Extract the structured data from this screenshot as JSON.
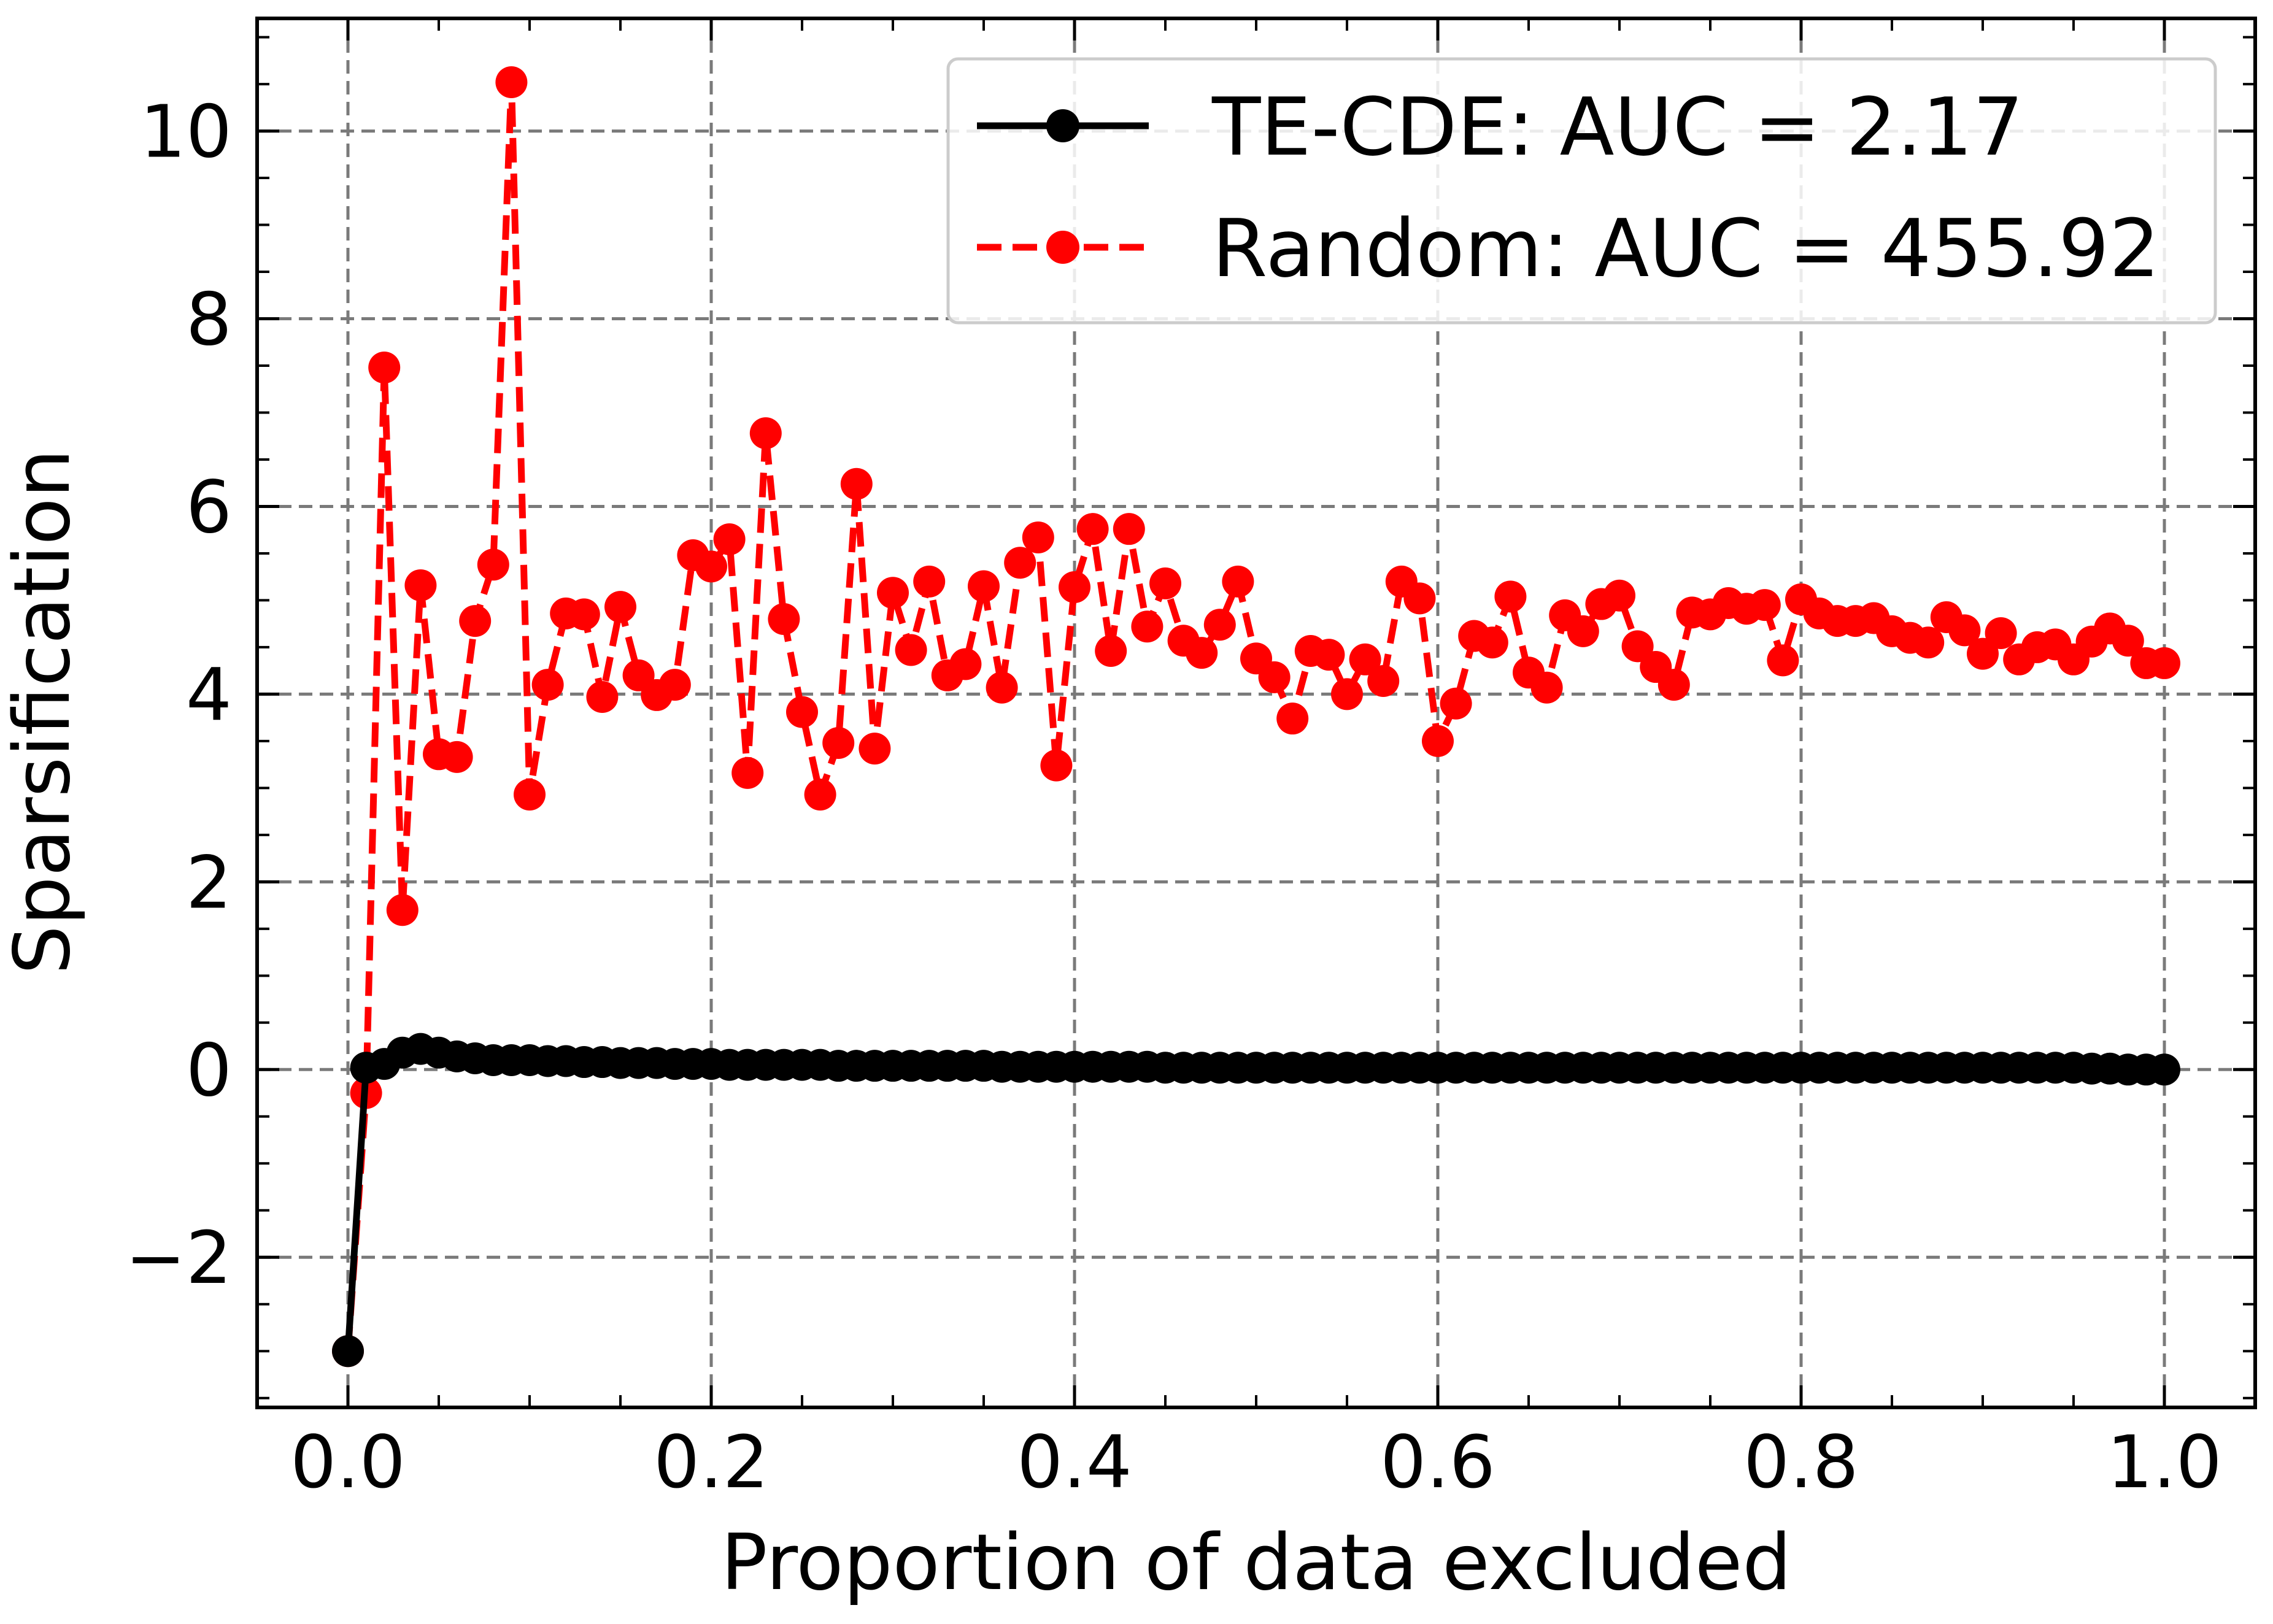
{
  "chart_data": {
    "type": "line",
    "xlabel": "Proportion of data excluded",
    "ylabel": "Sparsification",
    "xlim": [
      -0.05,
      1.05
    ],
    "ylim": [
      -3.6,
      11.2
    ],
    "x_ticks": [
      0.0,
      0.2,
      0.4,
      0.6,
      0.8,
      1.0
    ],
    "x_tick_labels": [
      "0.0",
      "0.2",
      "0.4",
      "0.6",
      "0.8",
      "1.0"
    ],
    "y_ticks": [
      -2,
      0,
      2,
      4,
      6,
      8,
      10
    ],
    "y_tick_labels": [
      "−2",
      "0",
      "2",
      "4",
      "6",
      "8",
      "10"
    ],
    "grid": true,
    "legend_position": "top-right",
    "series": [
      {
        "name": "TE-CDE: AUC = 2.17",
        "color": "#000000",
        "line_style": "solid",
        "marker": "circle",
        "x": [
          0.0,
          0.01,
          0.02,
          0.03,
          0.04,
          0.05,
          0.06,
          0.07,
          0.08,
          0.09,
          0.1,
          0.11,
          0.12,
          0.13,
          0.14,
          0.15,
          0.16,
          0.17,
          0.18,
          0.19,
          0.2,
          0.21,
          0.22,
          0.23,
          0.24,
          0.25,
          0.26,
          0.27,
          0.28,
          0.29,
          0.3,
          0.31,
          0.32,
          0.33,
          0.34,
          0.35,
          0.36,
          0.37,
          0.38,
          0.39,
          0.4,
          0.41,
          0.42,
          0.43,
          0.44,
          0.45,
          0.46,
          0.47,
          0.48,
          0.49,
          0.5,
          0.51,
          0.52,
          0.53,
          0.54,
          0.55,
          0.56,
          0.57,
          0.58,
          0.59,
          0.6,
          0.61,
          0.62,
          0.63,
          0.64,
          0.65,
          0.66,
          0.67,
          0.68,
          0.69,
          0.7,
          0.71,
          0.72,
          0.73,
          0.74,
          0.75,
          0.76,
          0.77,
          0.78,
          0.79,
          0.8,
          0.81,
          0.82,
          0.83,
          0.84,
          0.85,
          0.86,
          0.87,
          0.88,
          0.89,
          0.9,
          0.91,
          0.92,
          0.93,
          0.94,
          0.95,
          0.96,
          0.97,
          0.98,
          0.99,
          1.0
        ],
        "y": [
          -3.0,
          0.02,
          0.06,
          0.18,
          0.22,
          0.18,
          0.14,
          0.12,
          0.1,
          0.1,
          0.1,
          0.09,
          0.09,
          0.08,
          0.08,
          0.07,
          0.07,
          0.07,
          0.06,
          0.06,
          0.06,
          0.05,
          0.05,
          0.05,
          0.05,
          0.05,
          0.05,
          0.04,
          0.04,
          0.04,
          0.04,
          0.04,
          0.04,
          0.04,
          0.04,
          0.04,
          0.03,
          0.03,
          0.03,
          0.03,
          0.03,
          0.03,
          0.03,
          0.03,
          0.03,
          0.02,
          0.02,
          0.02,
          0.02,
          0.02,
          0.02,
          0.02,
          0.02,
          0.02,
          0.02,
          0.02,
          0.02,
          0.02,
          0.02,
          0.02,
          0.02,
          0.02,
          0.02,
          0.02,
          0.02,
          0.02,
          0.02,
          0.02,
          0.02,
          0.02,
          0.02,
          0.02,
          0.02,
          0.02,
          0.02,
          0.02,
          0.02,
          0.02,
          0.02,
          0.02,
          0.02,
          0.02,
          0.02,
          0.02,
          0.02,
          0.02,
          0.02,
          0.02,
          0.02,
          0.02,
          0.02,
          0.02,
          0.02,
          0.02,
          0.02,
          0.02,
          0.01,
          0.01,
          0.0,
          0.0,
          0.0
        ]
      },
      {
        "name": "Random: AUC = 455.92",
        "color": "#ff0000",
        "line_style": "dashed",
        "marker": "circle",
        "x": [
          0.0,
          0.01,
          0.02,
          0.03,
          0.04,
          0.05,
          0.06,
          0.07,
          0.08,
          0.09,
          0.1,
          0.11,
          0.12,
          0.13,
          0.14,
          0.15,
          0.16,
          0.17,
          0.18,
          0.19,
          0.2,
          0.21,
          0.22,
          0.23,
          0.24,
          0.25,
          0.26,
          0.27,
          0.28,
          0.29,
          0.3,
          0.31,
          0.32,
          0.33,
          0.34,
          0.35,
          0.36,
          0.37,
          0.38,
          0.39,
          0.4,
          0.41,
          0.42,
          0.43,
          0.44,
          0.45,
          0.46,
          0.47,
          0.48,
          0.49,
          0.5,
          0.51,
          0.52,
          0.53,
          0.54,
          0.55,
          0.56,
          0.57,
          0.58,
          0.59,
          0.6,
          0.61,
          0.62,
          0.63,
          0.64,
          0.65,
          0.66,
          0.67,
          0.68,
          0.69,
          0.7,
          0.71,
          0.72,
          0.73,
          0.74,
          0.75,
          0.76,
          0.77,
          0.78,
          0.79,
          0.8,
          0.81,
          0.82,
          0.83,
          0.84,
          0.85,
          0.86,
          0.87,
          0.88,
          0.89,
          0.9,
          0.91,
          0.92,
          0.93,
          0.94,
          0.95,
          0.96,
          0.97,
          0.98,
          0.99,
          1.0
        ],
        "y": [
          -3.0,
          -0.25,
          7.48,
          1.7,
          5.16,
          3.36,
          3.33,
          4.78,
          5.38,
          10.52,
          2.93,
          4.1,
          4.86,
          4.85,
          3.97,
          4.93,
          4.2,
          3.99,
          4.1,
          5.48,
          5.36,
          5.65,
          3.16,
          6.78,
          4.8,
          3.81,
          2.93,
          3.48,
          6.24,
          3.42,
          5.08,
          4.47,
          5.2,
          4.2,
          4.32,
          5.15,
          4.07,
          5.4,
          5.67,
          3.24,
          5.14,
          5.76,
          4.46,
          5.76,
          4.72,
          5.18,
          4.57,
          4.44,
          4.74,
          5.2,
          4.38,
          4.18,
          3.74,
          4.46,
          4.42,
          4.0,
          4.37,
          4.14,
          5.2,
          5.02,
          3.5,
          3.9,
          4.62,
          4.55,
          5.04,
          4.23,
          4.07,
          4.84,
          4.67,
          4.96,
          5.05,
          4.51,
          4.29,
          4.1,
          4.87,
          4.85,
          4.97,
          4.91,
          4.95,
          4.36,
          5.01,
          4.86,
          4.78,
          4.78,
          4.81,
          4.67,
          4.6,
          4.55,
          4.82,
          4.68,
          4.43,
          4.65,
          4.37,
          4.5,
          4.53,
          4.37,
          4.56,
          4.7,
          4.57,
          4.33,
          4.33
        ]
      }
    ]
  }
}
